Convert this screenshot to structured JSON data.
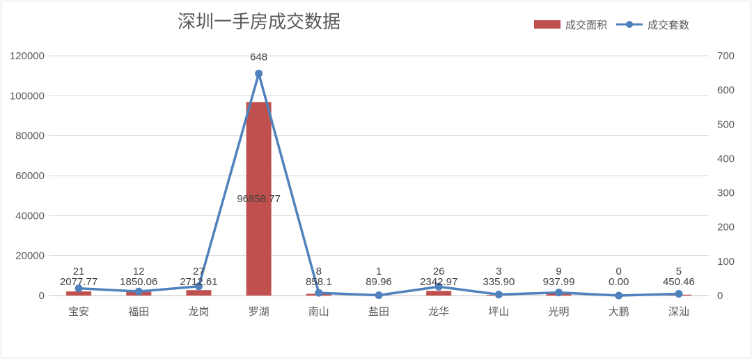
{
  "chart_data": {
    "type": "bar",
    "title": "深圳一手房成交数据",
    "categories": [
      "宝安",
      "福田",
      "龙岗",
      "罗湖",
      "南山",
      "盐田",
      "龙华",
      "坪山",
      "光明",
      "大鹏",
      "深汕"
    ],
    "series": [
      {
        "name": "成交面积",
        "type": "bar",
        "axis": "left",
        "color": "#c0504d",
        "values": [
          2077.77,
          1850.06,
          2712.61,
          96858.77,
          858.1,
          89.96,
          2342.97,
          335.9,
          937.99,
          0.0,
          450.46
        ],
        "labels": [
          "2077.77",
          "1850.06",
          "2712.61",
          "96858.77",
          "858.1",
          "89.96",
          "2342.97",
          "335.90",
          "937.99",
          "0.00",
          "450.46"
        ]
      },
      {
        "name": "成交套数",
        "type": "line",
        "axis": "right",
        "color": "#4f81bd",
        "values": [
          21,
          12,
          27,
          648,
          8,
          1,
          26,
          3,
          9,
          0,
          5
        ],
        "labels": [
          "21",
          "12",
          "27",
          "648",
          "8",
          "1",
          "26",
          "3",
          "9",
          "0",
          "5"
        ]
      }
    ],
    "y_left": {
      "min": 0,
      "max": 120000,
      "ticks": [
        "0",
        "20000",
        "40000",
        "60000",
        "80000",
        "100000",
        "120000"
      ]
    },
    "y_right": {
      "min": 0,
      "max": 700,
      "ticks": [
        "0",
        "100",
        "200",
        "300",
        "400",
        "500",
        "600",
        "700"
      ]
    },
    "grid": true,
    "legend": "top-right"
  }
}
